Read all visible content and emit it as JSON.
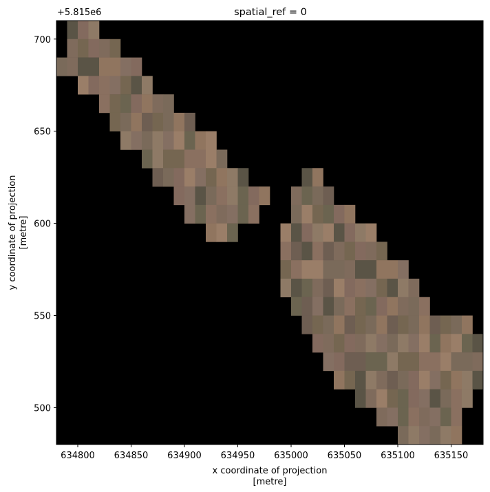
{
  "chart_data": {
    "type": "heatmap",
    "title": "spatial_ref = 0",
    "xlabel_line1": "x coordinate of projection",
    "xlabel_line2": "[metre]",
    "ylabel_line1": "y coordinate of projection",
    "ylabel_line2": "[metre]",
    "y_offset_label": "+5.815e6",
    "xlim": [
      634780,
      635180
    ],
    "ylim": [
      480,
      710
    ],
    "x_ticks": [
      {
        "value": 634800,
        "label": "634800"
      },
      {
        "value": 634850,
        "label": "634850"
      },
      {
        "value": 634900,
        "label": "634900"
      },
      {
        "value": 634950,
        "label": "634950"
      },
      {
        "value": 635000,
        "label": "635000"
      },
      {
        "value": 635050,
        "label": "635050"
      },
      {
        "value": 635100,
        "label": "635100"
      },
      {
        "value": 635150,
        "label": "635150"
      }
    ],
    "y_ticks": [
      {
        "value": 500,
        "label": "500"
      },
      {
        "value": 550,
        "label": "550"
      },
      {
        "value": 600,
        "label": "600"
      },
      {
        "value": 650,
        "label": "650"
      },
      {
        "value": 700,
        "label": "700"
      }
    ],
    "background_color": "#000000",
    "pixel_size": 10,
    "palette": [
      "#5a5446",
      "#6b6450",
      "#7a6a5a",
      "#836a5e",
      "#8a7060",
      "#90755f",
      "#8e7a66",
      "#7f6b5c",
      "#6e5e52",
      "#9a7e68",
      "#846f62",
      "#756651"
    ],
    "rows": [
      {
        "y_top": 710,
        "x_start": 634790,
        "x_end": 634820
      },
      {
        "y_top": 700,
        "x_start": 634790,
        "x_end": 634840
      },
      {
        "y_top": 690,
        "x_start": 634780,
        "x_end": 634860
      },
      {
        "y_top": 680,
        "x_start": 634800,
        "x_end": 634870
      },
      {
        "y_top": 670,
        "x_start": 634820,
        "x_end": 634890
      },
      {
        "y_top": 660,
        "x_start": 634830,
        "x_end": 634910
      },
      {
        "y_top": 650,
        "x_start": 634840,
        "x_end": 634930
      },
      {
        "y_top": 640,
        "x_start": 634860,
        "x_end": 634940
      },
      {
        "y_top": 630,
        "x_start": 634870,
        "x_end": 634960
      },
      {
        "y_top": 620,
        "x_start": 634890,
        "x_end": 634980
      },
      {
        "y_top": 610,
        "x_start": 634900,
        "x_end": 634970
      },
      {
        "y_top": 600,
        "x_start": 634920,
        "x_end": 634950
      },
      {
        "y_top": 630,
        "x_start": 635010,
        "x_end": 635030
      },
      {
        "y_top": 620,
        "x_start": 635000,
        "x_end": 635040
      },
      {
        "y_top": 610,
        "x_start": 635000,
        "x_end": 635060
      },
      {
        "y_top": 600,
        "x_start": 634990,
        "x_end": 635080
      },
      {
        "y_top": 590,
        "x_start": 634990,
        "x_end": 635090
      },
      {
        "y_top": 580,
        "x_start": 634990,
        "x_end": 635110
      },
      {
        "y_top": 570,
        "x_start": 634990,
        "x_end": 635120
      },
      {
        "y_top": 560,
        "x_start": 635000,
        "x_end": 635130
      },
      {
        "y_top": 550,
        "x_start": 635010,
        "x_end": 635170
      },
      {
        "y_top": 540,
        "x_start": 635020,
        "x_end": 635180
      },
      {
        "y_top": 530,
        "x_start": 635030,
        "x_end": 635180
      },
      {
        "y_top": 520,
        "x_start": 635040,
        "x_end": 635180
      },
      {
        "y_top": 510,
        "x_start": 635060,
        "x_end": 635170
      },
      {
        "y_top": 500,
        "x_start": 635080,
        "x_end": 635160
      },
      {
        "y_top": 490,
        "x_start": 635100,
        "x_end": 635160
      },
      {
        "y_top": 480,
        "x_start": 635120,
        "x_end": 635140
      }
    ]
  }
}
